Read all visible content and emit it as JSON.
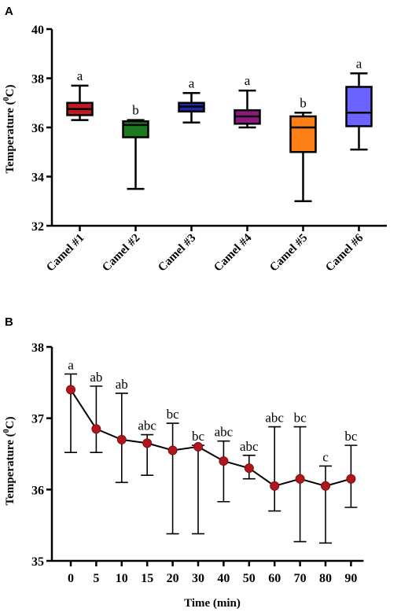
{
  "chart_data": [
    {
      "panel": "A",
      "type": "box",
      "ylabel": "Temperature (⁰C)",
      "ylabel_main": "Temperature (",
      "ylabel_sup": "0",
      "ylabel_end": "C)",
      "ylim": [
        32,
        40
      ],
      "yticks": [
        32,
        34,
        36,
        38,
        40
      ],
      "grid": false,
      "categories": [
        "Camel #1",
        "Camel #2",
        "Camel #3",
        "Camel #4",
        "Camel #5",
        "Camel #6"
      ],
      "boxes": [
        {
          "name": "Camel #1",
          "min": 36.3,
          "q1": 36.5,
          "median": 36.75,
          "q3": 37.0,
          "max": 37.7,
          "letter": "a",
          "color": "#c0191f"
        },
        {
          "name": "Camel #2",
          "min": 33.5,
          "q1": 35.6,
          "median": 36.1,
          "q3": 36.25,
          "max": 36.3,
          "letter": "b",
          "color": "#1f7a1f"
        },
        {
          "name": "Camel #3",
          "min": 36.2,
          "q1": 36.65,
          "median": 36.85,
          "q3": 37.0,
          "max": 37.4,
          "letter": "a",
          "color": "#1d2aa8"
        },
        {
          "name": "Camel #4",
          "min": 36.0,
          "q1": 36.15,
          "median": 36.45,
          "q3": 36.7,
          "max": 37.5,
          "letter": "a",
          "color": "#8e1a7e"
        },
        {
          "name": "Camel #5",
          "min": 33.0,
          "q1": 35.0,
          "median": 36.0,
          "q3": 36.45,
          "max": 36.6,
          "letter": "b",
          "color": "#ff7f17"
        },
        {
          "name": "Camel #6",
          "min": 35.1,
          "q1": 36.05,
          "median": 36.6,
          "q3": 37.65,
          "max": 38.2,
          "letter": "a",
          "color": "#6b63ff"
        }
      ]
    },
    {
      "panel": "B",
      "type": "line",
      "xlabel": "Time (min)",
      "ylabel": "Temperature (⁰C)",
      "ylabel_main": "Temperature (",
      "ylabel_sup": "0",
      "ylabel_end": "C)",
      "ylim": [
        35,
        38
      ],
      "yticks": [
        35,
        36,
        37,
        38
      ],
      "grid": false,
      "marker_color": "#b3151c",
      "x": [
        "0",
        "5",
        "10",
        "15",
        "20",
        "30",
        "40",
        "50",
        "60",
        "70",
        "80",
        "90"
      ],
      "y": [
        37.4,
        36.85,
        36.7,
        36.65,
        36.55,
        36.6,
        36.4,
        36.3,
        36.05,
        36.15,
        36.05,
        36.15
      ],
      "err_low": [
        36.52,
        36.52,
        36.1,
        36.2,
        35.38,
        35.38,
        35.83,
        36.15,
        35.7,
        35.27,
        35.25,
        35.75
      ],
      "err_high": [
        37.62,
        37.45,
        37.35,
        36.77,
        36.93,
        36.62,
        36.68,
        36.48,
        36.88,
        36.88,
        36.33,
        36.62
      ],
      "letters": [
        "a",
        "ab",
        "ab",
        "abc",
        "bc",
        "bc",
        "abc",
        "abc",
        "abc",
        "bc",
        "c",
        "bc"
      ]
    }
  ]
}
